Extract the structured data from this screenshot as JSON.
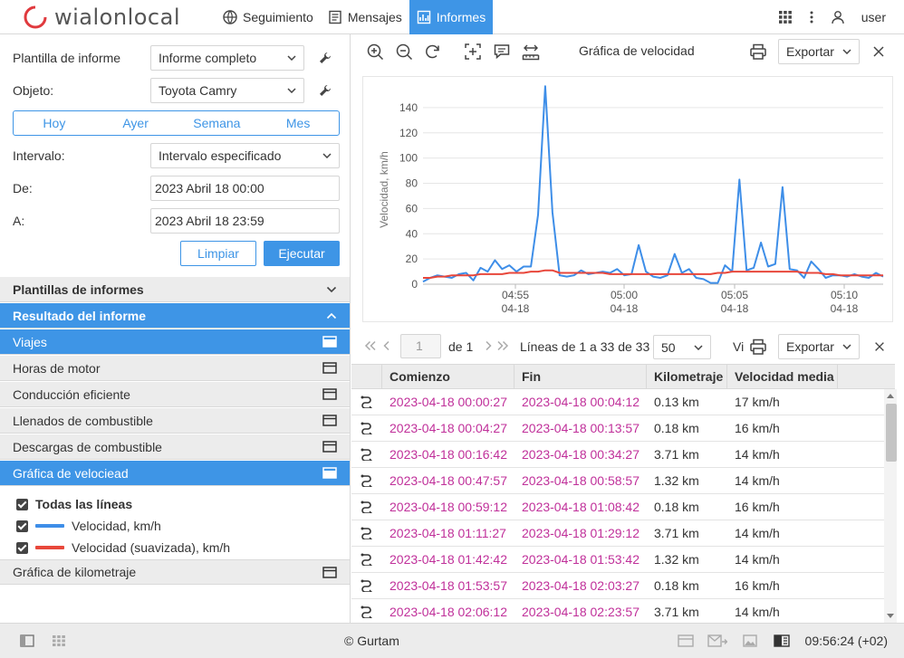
{
  "app": {
    "brand": "wialonlocal"
  },
  "nav": {
    "items": [
      {
        "label": "Seguimiento"
      },
      {
        "label": "Mensajes"
      },
      {
        "label": "Informes"
      }
    ],
    "user": "user"
  },
  "form": {
    "template_label": "Plantilla de informe",
    "template_value": "Informe completo",
    "object_label": "Objeto:",
    "object_value": "Toyota Camry",
    "quick": [
      "Hoy",
      "Ayer",
      "Semana",
      "Mes"
    ],
    "interval_label": "Intervalo:",
    "interval_value": "Intervalo especificado",
    "from_label": "De:",
    "from_value": "2023 Abril 18 00:00",
    "to_label": "A:",
    "to_value": "2023 Abril 18 23:59",
    "clear_label": "Limpiar",
    "run_label": "Ejecutar"
  },
  "sections": {
    "templates": "Plantillas de informes",
    "result": "Resultado del informe",
    "items": [
      {
        "label": "Viajes"
      },
      {
        "label": "Horas de motor"
      },
      {
        "label": "Conducción eficiente"
      },
      {
        "label": "Llenados de combustible"
      },
      {
        "label": "Descargas de combustible"
      },
      {
        "label": "Gráfica de velociead"
      }
    ],
    "lines_all": "Todas las líneas",
    "line1": "Velocidad, km/h",
    "line2": "Velocidad (suavizada), km/h",
    "mileage_chart": "Gráfica de kilometraje"
  },
  "chart_toolbar": {
    "title": "Gráfica de velocidad",
    "export": "Exportar"
  },
  "chart_data": {
    "type": "line",
    "ylabel": "Velocidad, km/h",
    "ylim": [
      0,
      150
    ],
    "yticks": [
      0,
      20,
      40,
      60,
      80,
      100,
      120,
      140
    ],
    "xticks": [
      "04:55",
      "05:00",
      "05:05",
      "05:10"
    ],
    "xtick_dates": [
      "04-18",
      "04-18",
      "04-18",
      "04-18"
    ],
    "grid": true,
    "colors": {
      "speed": "#3e8ee8",
      "smoothed": "#e8473b"
    },
    "series": [
      {
        "name": "Velocidad, km/h",
        "values": [
          2,
          5,
          7,
          6,
          5,
          8,
          9,
          3,
          13,
          10,
          19,
          12,
          15,
          10,
          14,
          14,
          55,
          157,
          57,
          7,
          6,
          7,
          11,
          8,
          9,
          10,
          9,
          12,
          7,
          8,
          31,
          10,
          6,
          5,
          7,
          24,
          9,
          12,
          5,
          4,
          1,
          1,
          15,
          10,
          83,
          11,
          13,
          33,
          14,
          16,
          77,
          12,
          11,
          5,
          18,
          12,
          5,
          7,
          7,
          6,
          8,
          6,
          5,
          9,
          6
        ]
      },
      {
        "name": "Velocidad (suavizada), km/h",
        "values": [
          5,
          5,
          6,
          6,
          7,
          7,
          7,
          7,
          8,
          8,
          8,
          8,
          9,
          9,
          9,
          10,
          10,
          11,
          11,
          9,
          9,
          9,
          9,
          9,
          9,
          9,
          8,
          8,
          8,
          8,
          8,
          8,
          8,
          8,
          8,
          8,
          8,
          8,
          8,
          8,
          8,
          9,
          9,
          10,
          10,
          10,
          10,
          10,
          10,
          10,
          10,
          10,
          10,
          9,
          9,
          9,
          8,
          8,
          7,
          7,
          7,
          7,
          7,
          7,
          7
        ]
      }
    ]
  },
  "table_toolbar": {
    "page": "1",
    "of_pages": "de 1",
    "lines_info": "Líneas de 1 a 33 de 33",
    "page_size": "50",
    "view_label": "Vi",
    "export": "Exportar"
  },
  "table": {
    "columns": [
      "Comienzo",
      "Fin",
      "Kilometraje",
      "Velocidad media"
    ],
    "rows": [
      [
        "2023-04-18 00:00:27",
        "2023-04-18 00:04:12",
        "0.13 km",
        "17 km/h"
      ],
      [
        "2023-04-18 00:04:27",
        "2023-04-18 00:13:57",
        "0.18 km",
        "16 km/h"
      ],
      [
        "2023-04-18 00:16:42",
        "2023-04-18 00:34:27",
        "3.71 km",
        "14 km/h"
      ],
      [
        "2023-04-18 00:47:57",
        "2023-04-18 00:58:57",
        "1.32 km",
        "14 km/h"
      ],
      [
        "2023-04-18 00:59:12",
        "2023-04-18 01:08:42",
        "0.18 km",
        "16 km/h"
      ],
      [
        "2023-04-18 01:11:27",
        "2023-04-18 01:29:12",
        "3.71 km",
        "14 km/h"
      ],
      [
        "2023-04-18 01:42:42",
        "2023-04-18 01:53:42",
        "1.32 km",
        "14 km/h"
      ],
      [
        "2023-04-18 01:53:57",
        "2023-04-18 02:03:27",
        "0.18 km",
        "16 km/h"
      ],
      [
        "2023-04-18 02:06:12",
        "2023-04-18 02:23:57",
        "3.71 km",
        "14 km/h"
      ]
    ]
  },
  "footer": {
    "copyright": "© Gurtam",
    "time": "09:56:24 (+02)"
  }
}
